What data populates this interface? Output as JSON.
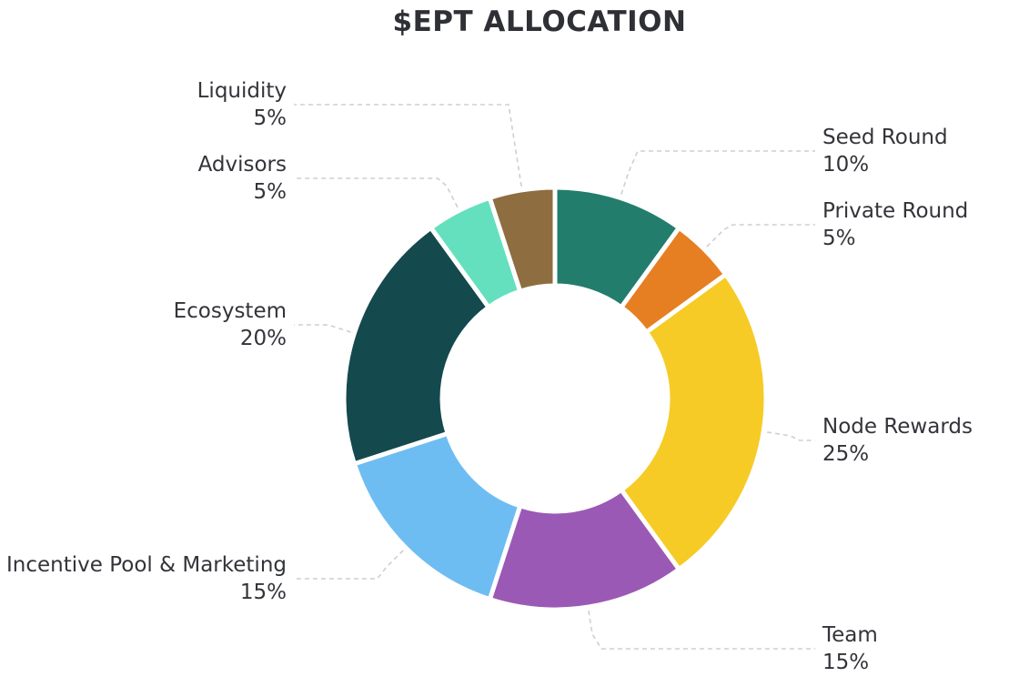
{
  "chart_data": {
    "type": "pie",
    "title": "$EPT ALLOCATION",
    "slices": [
      {
        "label": "Seed Round",
        "value": 10,
        "display": "10%",
        "color": "#227D6C"
      },
      {
        "label": "Private Round",
        "value": 5,
        "display": "5%",
        "color": "#E67F22"
      },
      {
        "label": "Node Rewards",
        "value": 25,
        "display": "25%",
        "color": "#F6CB25"
      },
      {
        "label": "Team",
        "value": 15,
        "display": "15%",
        "color": "#9B59B6"
      },
      {
        "label": "Incentive Pool & Marketing",
        "value": 15,
        "display": "15%",
        "color": "#6EBDF2"
      },
      {
        "label": "Ecosystem",
        "value": 20,
        "display": "20%",
        "color": "#14494E"
      },
      {
        "label": "Advisors",
        "value": 5,
        "display": "5%",
        "color": "#64E0BE"
      },
      {
        "label": "Liquidity",
        "value": 5,
        "display": "5%",
        "color": "#8E6D40"
      }
    ]
  }
}
